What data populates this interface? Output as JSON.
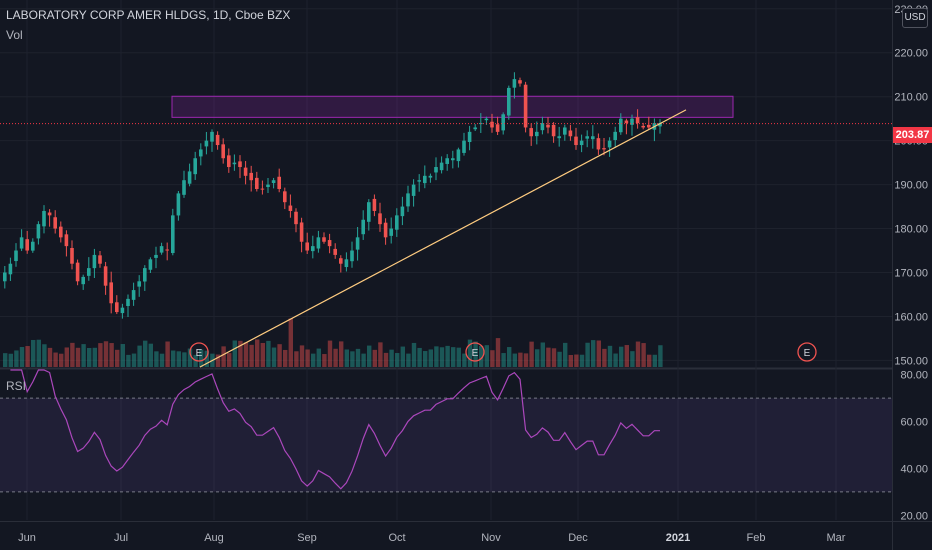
{
  "header": {
    "title": "LABORATORY CORP AMER HLDGS, 1D, Cboe BZX",
    "volume_label": "Vol"
  },
  "currency": "USD",
  "last_price": "203.87",
  "rsi_label": "RSI",
  "earnings_marker": "E",
  "colors": {
    "background": "#131722",
    "up": "#26a69a",
    "down": "#ef5350",
    "zone": "#9c27b0",
    "trendline": "#ffcc80",
    "rsi_line": "#ab47bc",
    "rsi_band": "#7e57c2",
    "price_tag": "#f23645"
  },
  "chart_data": [
    {
      "type": "candlestick",
      "title": "LABORATORY CORP AMER HLDGS, 1D, Cboe BZX",
      "y_ticks": [
        "150.00",
        "160.00",
        "170.00",
        "180.00",
        "190.00",
        "200.00",
        "210.00",
        "220.00",
        "230.00"
      ],
      "ylim": [
        148.5,
        232
      ],
      "x_ticks": [
        "Jun",
        "Jul",
        "Aug",
        "Sep",
        "Oct",
        "Nov",
        "Dec",
        "2021",
        "Feb",
        "Mar"
      ],
      "series": [
        {
          "name": "close",
          "values": [
            170,
            172,
            175,
            178,
            175,
            177,
            181,
            184,
            183,
            180,
            178,
            176,
            172,
            168,
            169,
            171,
            174,
            172,
            167,
            163,
            161,
            162,
            164,
            166,
            168,
            171,
            173,
            174,
            176,
            175,
            183,
            188,
            191,
            193,
            196,
            198,
            200,
            202,
            199,
            196,
            194,
            195,
            194,
            192,
            191,
            189,
            189,
            190,
            191,
            189,
            186,
            184,
            181,
            177,
            175,
            176,
            178,
            177,
            176,
            174,
            172,
            173,
            175,
            178,
            182,
            186,
            184,
            181,
            178,
            180,
            183,
            185,
            188,
            190,
            191,
            192,
            192,
            194,
            195,
            196,
            196,
            198,
            200,
            202,
            203,
            204,
            205,
            203,
            202,
            206,
            212,
            214,
            213,
            203,
            201,
            202,
            204,
            203,
            201,
            201,
            203,
            201,
            199,
            200,
            201,
            201,
            198,
            198,
            200,
            202,
            205,
            204,
            205,
            204,
            203,
            203,
            204,
            204
          ]
        }
      ],
      "shaded_zone": [
        205.3,
        210.1
      ],
      "trendline": [
        {
          "x": "Jul 27",
          "y": 148.5
        },
        {
          "x": "Dec 28",
          "y": 207
        }
      ],
      "last_price": 203.87
    },
    {
      "type": "bar",
      "name": "Vol",
      "note": "volume histogram drawn behind price, no scale printed"
    },
    {
      "type": "line",
      "name": "RSI",
      "y_ticks": [
        "20.00",
        "40.00",
        "60.00",
        "80.00"
      ],
      "ylim": [
        18,
        82
      ],
      "band": [
        30,
        70
      ]
    }
  ]
}
